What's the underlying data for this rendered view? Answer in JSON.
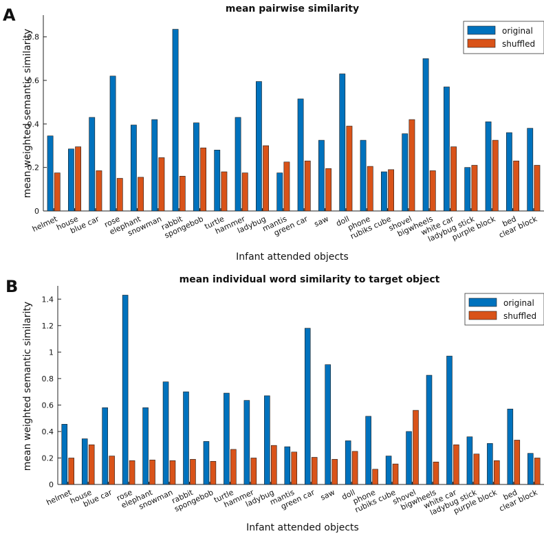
{
  "colors": {
    "original": "#0072BD",
    "shuffled": "#D95319"
  },
  "chart_data": [
    {
      "panel": "A",
      "type": "bar",
      "title": "mean pairwise similarity",
      "xlabel": "Infant attended objects",
      "ylabel": "mean weighted semantic similarity",
      "ylim": [
        0,
        0.9
      ],
      "yticks": [
        0,
        0.2,
        0.4,
        0.6,
        0.8
      ],
      "legend_position": "top-right",
      "categories": [
        "helmet",
        "house",
        "blue car",
        "rose",
        "elephant",
        "snowman",
        "rabbit",
        "spongebob",
        "turtle",
        "hammer",
        "ladybug",
        "mantis",
        "green car",
        "saw",
        "doll",
        "phone",
        "rubiks cube",
        "shovel",
        "bigwheels",
        "white car",
        "ladybug stick",
        "purple block",
        "bed",
        "clear block"
      ],
      "series": [
        {
          "name": "original",
          "values": [
            0.345,
            0.285,
            0.43,
            0.62,
            0.395,
            0.42,
            0.835,
            0.405,
            0.28,
            0.43,
            0.595,
            0.175,
            0.515,
            0.325,
            0.63,
            0.325,
            0.18,
            0.355,
            0.7,
            0.57,
            0.2,
            0.41,
            0.36,
            0.38
          ]
        },
        {
          "name": "shuffled",
          "values": [
            0.175,
            0.295,
            0.185,
            0.15,
            0.155,
            0.245,
            0.16,
            0.29,
            0.18,
            0.175,
            0.3,
            0.225,
            0.23,
            0.195,
            0.39,
            0.205,
            0.19,
            0.42,
            0.185,
            0.295,
            0.21,
            0.325,
            0.23,
            0.21
          ]
        }
      ]
    },
    {
      "panel": "B",
      "type": "bar",
      "title": "mean individual word similarity to target object",
      "xlabel": "Infant attended objects",
      "ylabel": "mean weighted semantic similarity",
      "ylim": [
        0,
        1.5
      ],
      "yticks": [
        0,
        0.2,
        0.4,
        0.6,
        0.8,
        1,
        1.2,
        1.4
      ],
      "legend_position": "top-right",
      "categories": [
        "helmet",
        "house",
        "blue car",
        "rose",
        "elephant",
        "snowman",
        "rabbit",
        "spongebob",
        "turtle",
        "hammer",
        "ladybug",
        "mantis",
        "green car",
        "saw",
        "doll",
        "phone",
        "rubiks cube",
        "shovel",
        "bigwheels",
        "white car",
        "ladybug stick",
        "purple block",
        "bed",
        "clear block"
      ],
      "series": [
        {
          "name": "original",
          "values": [
            0.455,
            0.345,
            0.58,
            1.43,
            0.58,
            0.775,
            0.7,
            0.325,
            0.69,
            0.635,
            0.67,
            0.285,
            1.18,
            0.905,
            0.33,
            0.515,
            0.215,
            0.4,
            0.825,
            0.97,
            0.36,
            0.31,
            0.57,
            0.235
          ]
        },
        {
          "name": "shuffled",
          "values": [
            0.2,
            0.3,
            0.215,
            0.18,
            0.185,
            0.18,
            0.19,
            0.175,
            0.265,
            0.2,
            0.295,
            0.245,
            0.205,
            0.19,
            0.25,
            0.115,
            0.155,
            0.56,
            0.17,
            0.3,
            0.23,
            0.18,
            0.335,
            0.2
          ]
        }
      ]
    }
  ]
}
